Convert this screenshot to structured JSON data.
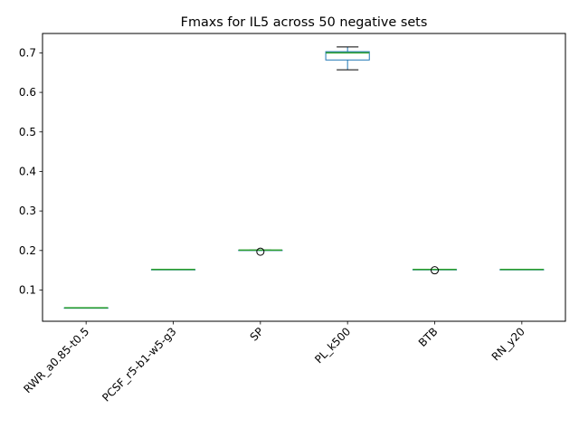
{
  "chart_data": {
    "type": "box",
    "title": "Fmaxs for IL5 across 50 negative sets",
    "xlabel": "",
    "ylabel": "",
    "ylim": [
      0.021,
      0.749
    ],
    "yticks": [
      0.1,
      0.2,
      0.3,
      0.4,
      0.5,
      0.6,
      0.7
    ],
    "ytick_labels": [
      "0.1",
      "0.2",
      "0.3",
      "0.4",
      "0.5",
      "0.6",
      "0.7"
    ],
    "grid": false,
    "categories": [
      "RWR_a0.85-t0.5",
      "PCSF_r5-b1-w5-g3",
      "SP",
      "PL_k500",
      "BTB",
      "RN_y20"
    ],
    "boxes": [
      {
        "whislo": 0.055,
        "q1": 0.055,
        "med": 0.055,
        "q3": 0.055,
        "whishi": 0.055,
        "fliers": []
      },
      {
        "whislo": 0.152,
        "q1": 0.152,
        "med": 0.152,
        "q3": 0.152,
        "whishi": 0.152,
        "fliers": []
      },
      {
        "whislo": 0.201,
        "q1": 0.201,
        "med": 0.201,
        "q3": 0.201,
        "whishi": 0.201,
        "fliers": [
          0.197
        ]
      },
      {
        "whislo": 0.657,
        "q1": 0.682,
        "med": 0.7,
        "q3": 0.703,
        "whishi": 0.715,
        "fliers": []
      },
      {
        "whislo": 0.152,
        "q1": 0.152,
        "med": 0.152,
        "q3": 0.152,
        "whishi": 0.152,
        "fliers": [
          0.15
        ]
      },
      {
        "whislo": 0.152,
        "q1": 0.152,
        "med": 0.152,
        "q3": 0.152,
        "whishi": 0.152,
        "fliers": []
      }
    ],
    "colors": {
      "box": "#1f77b4",
      "median": "#2ca02c",
      "whisker": "#000000",
      "flier": "#000000"
    }
  }
}
